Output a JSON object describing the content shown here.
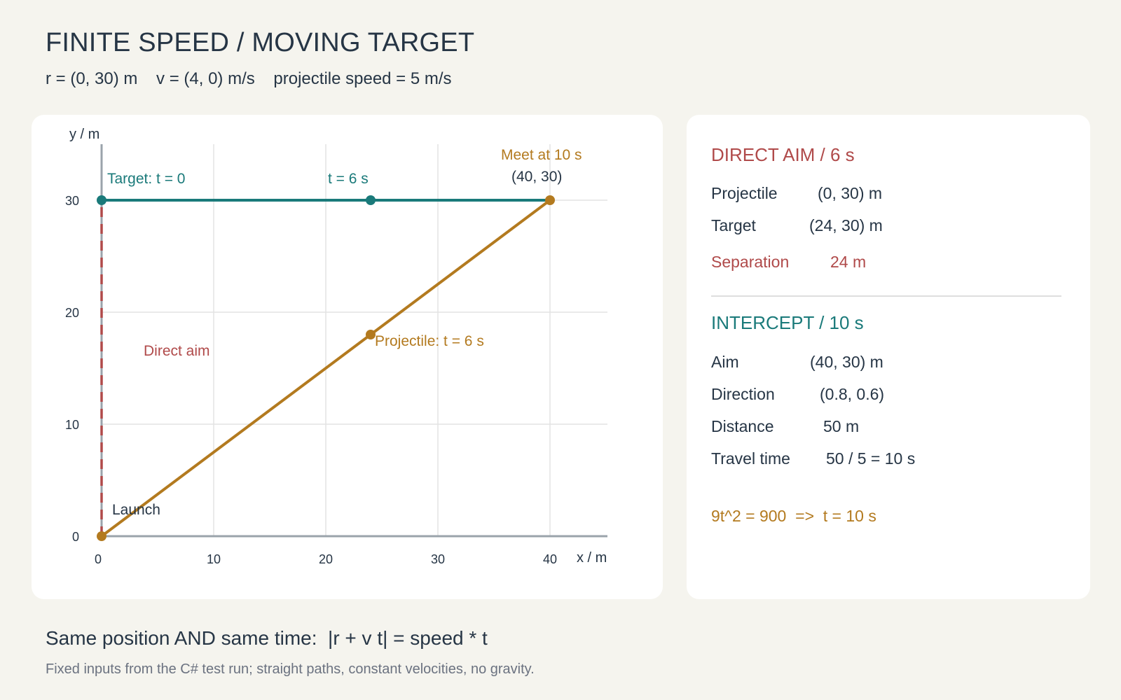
{
  "header": {
    "title": "FINITE SPEED / MOVING TARGET",
    "subtitle": "r = (0, 30) m    v = (4, 0) m/s    projectile speed = 5 m/s"
  },
  "colors": {
    "teal": "#1a7a7a",
    "amber": "#b37a1f",
    "red": "#b04a4a",
    "ink": "#263545"
  },
  "plot": {
    "x_axis_label": "x / m",
    "y_axis_label": "y / m",
    "x_ticks": [
      0,
      10,
      20,
      30,
      40
    ],
    "y_ticks": [
      0,
      10,
      20,
      30
    ],
    "xlim": [
      0,
      45
    ],
    "ylim": [
      0,
      35
    ],
    "target_path": {
      "from": [
        0,
        30
      ],
      "to": [
        40,
        30
      ]
    },
    "direct_aim_path": {
      "from": [
        0,
        0
      ],
      "to": [
        0,
        30
      ]
    },
    "intercept_path": {
      "from": [
        0,
        0
      ],
      "to": [
        40,
        30
      ]
    },
    "points": [
      {
        "name": "target-start-point",
        "x": 0,
        "y": 30,
        "series": "teal"
      },
      {
        "name": "target-6s-point",
        "x": 24,
        "y": 30,
        "series": "teal"
      },
      {
        "name": "meet-point",
        "x": 40,
        "y": 30,
        "series": "amber"
      },
      {
        "name": "projectile-6s-point",
        "x": 24,
        "y": 18,
        "series": "amber"
      },
      {
        "name": "launch-point",
        "x": 0,
        "y": 0,
        "series": "amber"
      }
    ],
    "labels": {
      "target_t0": "Target: t = 0",
      "target_t6": "t = 6 s",
      "meet": "Meet at 10 s",
      "meet_coords": "(40, 30)",
      "projectile_t6": "Projectile: t = 6 s",
      "direct_aim": "Direct aim",
      "launch": "Launch"
    }
  },
  "direct_aim": {
    "heading": "DIRECT AIM / 6 s",
    "rows": [
      {
        "label": "Projectile",
        "value": "(0, 30) m"
      },
      {
        "label": "Target",
        "value": "(24, 30) m"
      }
    ],
    "separation": {
      "label": "Separation",
      "value": "24 m"
    }
  },
  "intercept": {
    "heading": "INTERCEPT / 10 s",
    "rows": [
      {
        "label": "Aim",
        "value": "(40, 30) m"
      },
      {
        "label": "Direction",
        "value": "(0.8, 0.6)"
      },
      {
        "label": "Distance",
        "value": "50 m"
      },
      {
        "label": "Travel time",
        "value": "50 / 5 = 10 s"
      }
    ],
    "equation": "9t^2 = 900  =>  t = 10 s"
  },
  "footer": {
    "main": "Same position AND same time:  |r + v t| = speed * t",
    "note": "Fixed inputs from the C# test run; straight paths, constant velocities, no gravity."
  }
}
